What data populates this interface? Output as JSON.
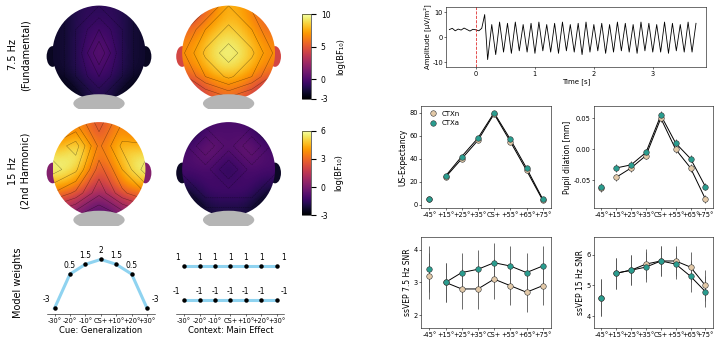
{
  "row_labels": [
    [
      "7.5 Hz",
      "(Fundamental)"
    ],
    [
      "15 Hz",
      "(2nd Harmonic)"
    ],
    [
      "Model weights"
    ]
  ],
  "chart_data": [
    {
      "type": "heatmap",
      "cells": [
        [
          -2,
          -1,
          -1,
          -1,
          -2
        ],
        [
          -2,
          -1,
          0,
          -1,
          -2
        ],
        [
          -2,
          -1,
          1,
          -1,
          -2
        ],
        [
          -2,
          -1,
          0,
          -1,
          -2
        ],
        [
          -3,
          -2,
          -1,
          -2,
          -3
        ]
      ],
      "color_range": [
        -3,
        10
      ]
    },
    {
      "type": "heatmap",
      "cells": [
        [
          4,
          6,
          8,
          7,
          5
        ],
        [
          6,
          8,
          9,
          8,
          6
        ],
        [
          7,
          9,
          10,
          9,
          7
        ],
        [
          6,
          8,
          9,
          8,
          6
        ],
        [
          3,
          5,
          6,
          5,
          3
        ]
      ],
      "color_range": [
        -3,
        10
      ],
      "colorbar_ticks": [
        -3,
        0,
        5,
        10
      ],
      "colorbar_label": "log(BF₁₀)"
    },
    {
      "type": "heatmap",
      "cells": [
        [
          3,
          4,
          2,
          4,
          3
        ],
        [
          5,
          6,
          3,
          5,
          5
        ],
        [
          6,
          5,
          2,
          4,
          6
        ],
        [
          4,
          3,
          1,
          3,
          4
        ],
        [
          1,
          0,
          -1,
          0,
          1
        ]
      ],
      "color_range": [
        -3,
        6
      ]
    },
    {
      "type": "heatmap",
      "cells": [
        [
          -2,
          -1,
          -1,
          -1,
          -2
        ],
        [
          -1,
          0,
          -1,
          0,
          -1
        ],
        [
          -1,
          -1,
          -2,
          -1,
          -1
        ],
        [
          -2,
          -1,
          -1,
          -1,
          -2
        ],
        [
          -3,
          -2,
          -2,
          -2,
          -3
        ]
      ],
      "color_range": [
        -3,
        6
      ],
      "colorbar_ticks": [
        -3,
        0,
        3,
        6
      ],
      "colorbar_label": "log(BF₁₀)"
    },
    {
      "type": "line",
      "xlabel": "Cue: Generalization",
      "categories": [
        "-30°",
        "-20°",
        "-10°",
        "CS+",
        "+10°",
        "+20°",
        "+30°"
      ],
      "series": [
        {
          "color": "#8fd3f0",
          "values": [
            -3,
            0.5,
            1.5,
            2,
            1.5,
            0.5,
            -3
          ]
        }
      ],
      "ylim": [
        -3.6,
        2.9
      ],
      "data_labels": true,
      "tick_labels": "x",
      "marker": "o"
    },
    {
      "type": "line",
      "xlabel": "Context: Main Effect",
      "categories": [
        "-30°",
        "-20°",
        "-10°",
        "CS+",
        "+10°",
        "+20°",
        "+30°"
      ],
      "series": [
        {
          "color": "#8fd3f0",
          "values": [
            1,
            1,
            1,
            1,
            1,
            1,
            1
          ]
        },
        {
          "color": "#8fd3f0",
          "values": [
            -1,
            -1,
            -1,
            -1,
            -1,
            -1,
            -1
          ]
        }
      ],
      "ylim": [
        -1.8,
        1.9
      ],
      "data_labels": true,
      "tick_labels": "x",
      "marker": "o"
    },
    {
      "type": "line",
      "xlabel": "Time [s]",
      "ylabel": "Amplitude [µV/m²]",
      "onset": 0,
      "onset_color": "#e03030",
      "color": "#000000",
      "x": [
        -0.45,
        -0.4,
        -0.35,
        -0.3,
        -0.25,
        -0.2,
        -0.15,
        -0.1,
        -0.05,
        0.0,
        0.05,
        0.1,
        0.15,
        0.2,
        0.27,
        0.337,
        0.403,
        0.47,
        0.537,
        0.603,
        0.67,
        0.737,
        0.803,
        0.87,
        0.937,
        1.003,
        1.07,
        1.137,
        1.203,
        1.27,
        1.337,
        1.403,
        1.47,
        1.537,
        1.603,
        1.67,
        1.737,
        1.803,
        1.87,
        1.937,
        2.003,
        2.07,
        2.137,
        2.203,
        2.27,
        2.337,
        2.403,
        2.47,
        2.537,
        2.603,
        2.67,
        2.737,
        2.803,
        2.87,
        2.937,
        3.003,
        3.07,
        3.137,
        3.203,
        3.27,
        3.337,
        3.403,
        3.47,
        3.537,
        3.603,
        3.67,
        3.737
      ],
      "values": [
        3,
        3.5,
        2.5,
        3.2,
        2.8,
        3.6,
        3,
        2.4,
        3.1,
        2.9,
        2.5,
        3.5,
        9,
        -9,
        5,
        -7,
        6,
        -6,
        5.5,
        -6.5,
        6,
        -5.5,
        5,
        -6,
        5.5,
        -6.5,
        6,
        -5.5,
        5,
        -6,
        5.5,
        -6.5,
        6,
        -5.5,
        5,
        -6,
        5.5,
        -7,
        6,
        -6,
        5,
        -5.5,
        5.5,
        -6.5,
        5,
        -6,
        6,
        -5.5,
        5.5,
        -6,
        5,
        -6.5,
        6,
        -5.5,
        5.5,
        -6,
        5,
        -6,
        6,
        -6.5,
        5.5,
        -5.5,
        5,
        -6,
        6,
        -6,
        5.5
      ],
      "xlim": [
        -0.5,
        3.9
      ],
      "xticks": [
        0,
        1,
        2,
        3
      ],
      "ylim": [
        -12,
        12
      ],
      "yticks": [
        -10,
        0,
        10
      ]
    },
    {
      "type": "line",
      "ylabel": "US-Expectancy",
      "categories": [
        "-45°",
        "+15°",
        "+25°",
        "+35°",
        "CS+",
        "+55°",
        "+65°",
        "+75°"
      ],
      "series": [
        {
          "name": "CTXn",
          "color": "#e3c9a8",
          "values": [
            5,
            24,
            40,
            56,
            79,
            55,
            30,
            4
          ]
        },
        {
          "name": "CTXa",
          "color": "#2a9d8f",
          "values": [
            5,
            25,
            42,
            58,
            80,
            57,
            32,
            5
          ]
        }
      ],
      "ylim": [
        -3,
        86
      ],
      "yticks": [
        0,
        20,
        40,
        60,
        80
      ],
      "legend": "upper left",
      "marker": "o"
    },
    {
      "type": "line",
      "ylabel": "Pupil dilation [mm]",
      "categories": [
        "-45°",
        "+15°",
        "+25°",
        "+35°",
        "CS+",
        "+55°",
        "+65°",
        "+75°"
      ],
      "series": [
        {
          "name": "CTXn",
          "color": "#e3c9a8",
          "values": [
            -0.063,
            -0.045,
            -0.03,
            -0.01,
            0.05,
            0.0,
            -0.03,
            -0.08
          ],
          "errors": [
            0.006,
            0.006,
            0.006,
            0.006,
            0.006,
            0.006,
            0.006,
            0.006
          ]
        },
        {
          "name": "CTXa",
          "color": "#2a9d8f",
          "values": [
            -0.06,
            -0.03,
            -0.025,
            -0.005,
            0.055,
            0.01,
            -0.015,
            -0.06
          ],
          "errors": [
            0.006,
            0.006,
            0.006,
            0.006,
            0.006,
            0.006,
            0.006,
            0.006
          ]
        }
      ],
      "ylim": [
        -0.095,
        0.07
      ],
      "yticks": [
        {
          "value": -0.05,
          "label": "-0.05"
        },
        {
          "value": 0,
          "label": "0.00"
        },
        0.05
      ],
      "marker": "o"
    },
    {
      "type": "line",
      "ylabel": "ssVEP 7.5 Hz SNR",
      "categories": [
        "-45°",
        "+15°",
        "+25°",
        "+35°",
        "CS+",
        "+55°",
        "+65°",
        "+75°"
      ],
      "series": [
        {
          "name": "CTXn",
          "color": "#e3c9a8",
          "values": [
            3.2,
            3.0,
            2.8,
            2.8,
            3.1,
            2.9,
            2.7,
            2.9
          ],
          "errors": [
            0.7,
            0.6,
            0.6,
            0.6,
            0.6,
            0.6,
            0.6,
            0.6
          ]
        },
        {
          "name": "CTXa",
          "color": "#2a9d8f",
          "values": [
            3.4,
            3.0,
            3.3,
            3.4,
            3.6,
            3.5,
            3.3,
            3.5
          ],
          "errors": [
            0.7,
            0.6,
            0.6,
            0.6,
            0.6,
            0.6,
            0.6,
            0.6
          ]
        }
      ],
      "ylim": [
        1.6,
        4.4
      ],
      "yticks": [
        2,
        3,
        4
      ],
      "marker": "o"
    },
    {
      "type": "line",
      "ylabel": "ssVEP 15 Hz SNR",
      "categories": [
        "-45°",
        "+15°",
        "+25°",
        "+35°",
        "CS+",
        "+55°",
        "+65°",
        "+75°"
      ],
      "series": [
        {
          "name": "CTXn",
          "color": "#e3c9a8",
          "values": [
            4.6,
            5.4,
            5.5,
            5.7,
            5.8,
            5.8,
            5.6,
            5.0
          ],
          "errors": [
            0.6,
            0.5,
            0.5,
            0.5,
            0.5,
            0.5,
            0.5,
            0.5
          ]
        },
        {
          "name": "CTXa",
          "color": "#2a9d8f",
          "values": [
            4.6,
            5.4,
            5.5,
            5.6,
            5.8,
            5.7,
            5.3,
            4.8
          ],
          "errors": [
            0.6,
            0.5,
            0.5,
            0.5,
            0.5,
            0.5,
            0.5,
            0.5
          ]
        }
      ],
      "ylim": [
        3.6,
        6.6
      ],
      "yticks": [
        4,
        5,
        6
      ],
      "marker": "o"
    }
  ]
}
